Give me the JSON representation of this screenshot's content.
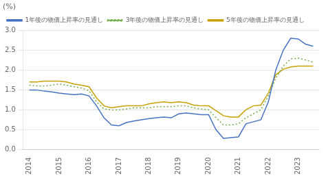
{
  "chart_data": {
    "type": "line",
    "title": "(%)",
    "x": [
      2014.0,
      2014.25,
      2014.5,
      2014.75,
      2015.0,
      2015.25,
      2015.5,
      2015.75,
      2016.0,
      2016.25,
      2016.5,
      2016.75,
      2017.0,
      2017.25,
      2017.5,
      2017.75,
      2018.0,
      2018.25,
      2018.5,
      2018.75,
      2019.0,
      2019.25,
      2019.5,
      2019.75,
      2020.0,
      2020.25,
      2020.5,
      2020.75,
      2021.0,
      2021.25,
      2021.5,
      2021.75,
      2022.0,
      2022.25,
      2022.5,
      2022.75,
      2023.0,
      2023.25,
      2023.5
    ],
    "series": [
      {
        "name": "1年後の物価上昇率の見通し",
        "color": "#4472c4",
        "line_style": "solid",
        "values": [
          1.5,
          1.5,
          1.47,
          1.45,
          1.42,
          1.4,
          1.38,
          1.4,
          1.35,
          1.1,
          0.8,
          0.62,
          0.6,
          0.68,
          0.72,
          0.75,
          0.78,
          0.8,
          0.82,
          0.8,
          0.9,
          0.92,
          0.9,
          0.88,
          0.88,
          0.5,
          0.28,
          0.3,
          0.32,
          0.65,
          0.7,
          0.75,
          1.2,
          2.0,
          2.5,
          2.8,
          2.78,
          2.65,
          2.6
        ]
      },
      {
        "name": "3年後の物価上昇率の見通し",
        "color": "#70ad47",
        "line_style": "dotted",
        "values": [
          1.62,
          1.6,
          1.6,
          1.62,
          1.65,
          1.62,
          1.58,
          1.55,
          1.48,
          1.2,
          1.02,
          1.0,
          1.0,
          1.02,
          1.05,
          1.05,
          1.05,
          1.08,
          1.08,
          1.08,
          1.1,
          1.1,
          1.05,
          1.02,
          1.0,
          0.8,
          0.62,
          0.62,
          0.65,
          0.8,
          0.9,
          1.0,
          1.35,
          1.8,
          2.1,
          2.28,
          2.3,
          2.25,
          2.2
        ]
      },
      {
        "name": "5年後の物価上昇率の見通し",
        "color": "#c8a000",
        "line_style": "solid",
        "values": [
          1.7,
          1.7,
          1.72,
          1.72,
          1.72,
          1.7,
          1.65,
          1.62,
          1.58,
          1.3,
          1.1,
          1.05,
          1.08,
          1.1,
          1.1,
          1.1,
          1.15,
          1.18,
          1.2,
          1.18,
          1.2,
          1.18,
          1.12,
          1.1,
          1.1,
          0.98,
          0.85,
          0.82,
          0.82,
          1.0,
          1.1,
          1.12,
          1.42,
          1.88,
          2.02,
          2.08,
          2.1,
          2.1,
          2.1
        ]
      }
    ],
    "xlim": [
      2013.8,
      2023.7
    ],
    "xticks": [
      2014,
      2015,
      2016,
      2017,
      2018,
      2019,
      2020,
      2021,
      2022,
      2023
    ],
    "ylim": [
      0.0,
      3.0
    ],
    "yticks": [
      {
        "value": 0,
        "label": "0.0"
      },
      0.5,
      {
        "value": 1,
        "label": "1.0"
      },
      1.5,
      {
        "value": 2,
        "label": "2.0"
      },
      2.5,
      {
        "value": 3,
        "label": "3.0"
      }
    ],
    "grid": true,
    "legend": "upper left"
  }
}
